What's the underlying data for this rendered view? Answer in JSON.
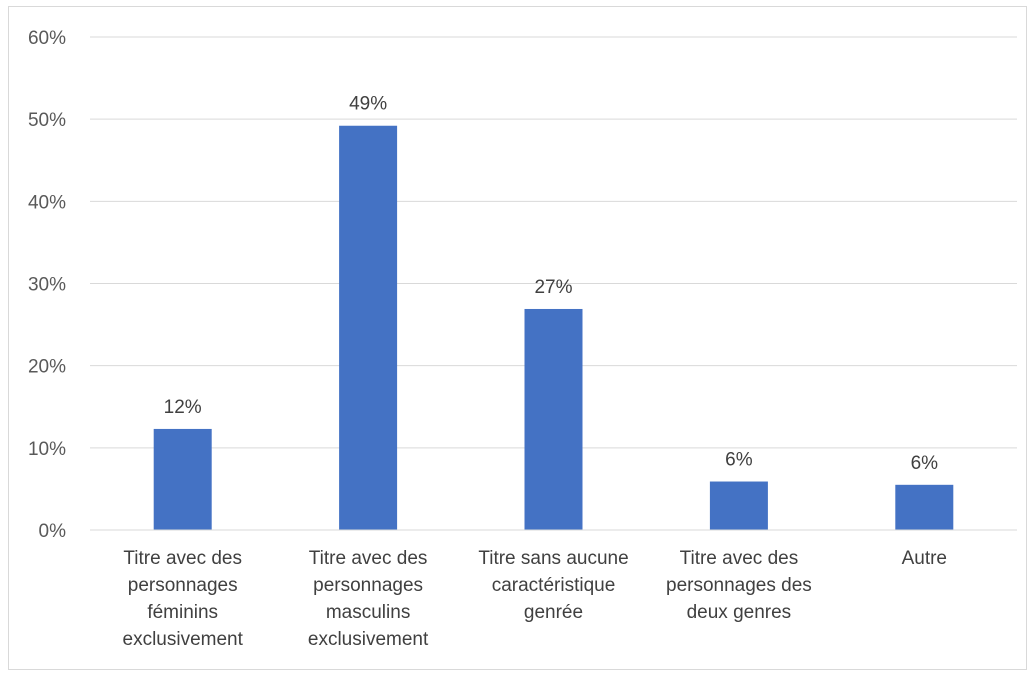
{
  "chart_data": {
    "type": "bar",
    "categories": [
      "Titre avec des personnages féminins exclusivement",
      "Titre avec des personnages masculins exclusivement",
      "Titre sans aucune caractéristique genrée",
      "Titre avec des personnages des deux genres",
      "Autre"
    ],
    "category_lines": [
      [
        "Titre avec des",
        "personnages",
        "féminins",
        "exclusivement"
      ],
      [
        "Titre avec des",
        "personnages",
        "masculins",
        "exclusivement"
      ],
      [
        "Titre sans aucune",
        "caractéristique",
        "genrée"
      ],
      [
        "Titre avec des",
        "personnages des",
        "deux genres"
      ],
      [
        "Autre"
      ]
    ],
    "values": [
      12.3,
      49.2,
      26.9,
      5.9,
      5.5
    ],
    "data_labels": [
      "12%",
      "49%",
      "27%",
      "6%",
      "6%"
    ],
    "ylim": [
      0,
      60
    ],
    "yticks": [
      "0%",
      "10%",
      "20%",
      "30%",
      "40%",
      "50%",
      "60%"
    ],
    "grid": true,
    "bar_color": "#4472C4",
    "grid_color": "#d9d9d9",
    "title": "",
    "xlabel": "",
    "ylabel": ""
  }
}
